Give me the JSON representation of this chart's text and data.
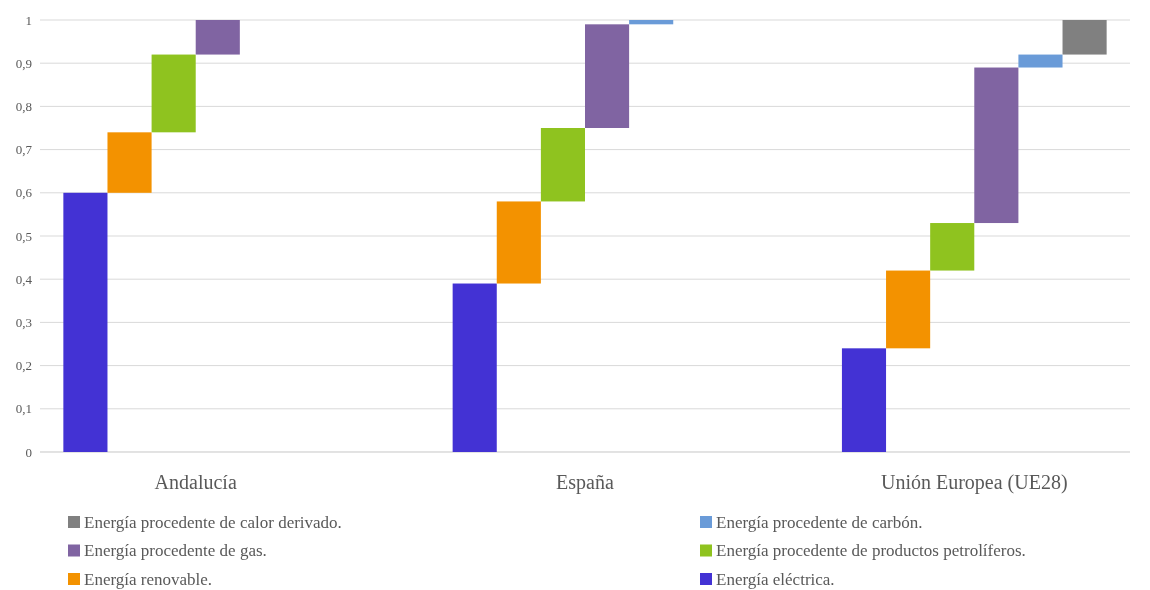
{
  "chart_data": {
    "type": "bar",
    "categories": [
      "Andalucía",
      "España",
      "Unión Europea (UE28)"
    ],
    "series": [
      {
        "name": "Energía eléctrica.",
        "color": "#4332d4",
        "values": [
          0.6,
          0.39,
          0.24
        ],
        "base": [
          0,
          0,
          0
        ]
      },
      {
        "name": "Energía renovable.",
        "color": "#f39200",
        "values": [
          0.14,
          0.19,
          0.18
        ],
        "base": [
          0.6,
          0.39,
          0.24
        ]
      },
      {
        "name": "Energía procedente de productos petrolíferos.",
        "color": "#8fc31f",
        "values": [
          0.18,
          0.17,
          0.11
        ],
        "base": [
          0.74,
          0.58,
          0.42
        ]
      },
      {
        "name": "Energía procedente de gas.",
        "color": "#8064a2",
        "values": [
          0.08,
          0.24,
          0.36
        ],
        "base": [
          0.92,
          0.75,
          0.53
        ]
      },
      {
        "name": "Energía procedente de carbón.",
        "color": "#6a9bd8",
        "values": [
          null,
          0.01,
          0.03
        ],
        "base": [
          null,
          0.99,
          0.89
        ]
      },
      {
        "name": "Energía procedente de calor derivado.",
        "color": "#808080",
        "values": [
          null,
          null,
          0.08
        ],
        "base": [
          null,
          null,
          0.92
        ]
      }
    ],
    "ylim": [
      0,
      1
    ],
    "yticks": [
      0,
      {
        "value": 0.1,
        "label": "0,1"
      },
      {
        "value": 0.2,
        "label": "0,2"
      },
      {
        "value": 0.3,
        "label": "0,3"
      },
      {
        "value": 0.4,
        "label": "0,4"
      },
      {
        "value": 0.5,
        "label": "0,5"
      },
      {
        "value": 0.6,
        "label": "0,6"
      },
      {
        "value": 0.7,
        "label": "0,7"
      },
      {
        "value": 0.8,
        "label": "0,8"
      },
      {
        "value": 0.9,
        "label": "0,9"
      },
      1
    ],
    "grid": "y",
    "legend": "bottom"
  }
}
